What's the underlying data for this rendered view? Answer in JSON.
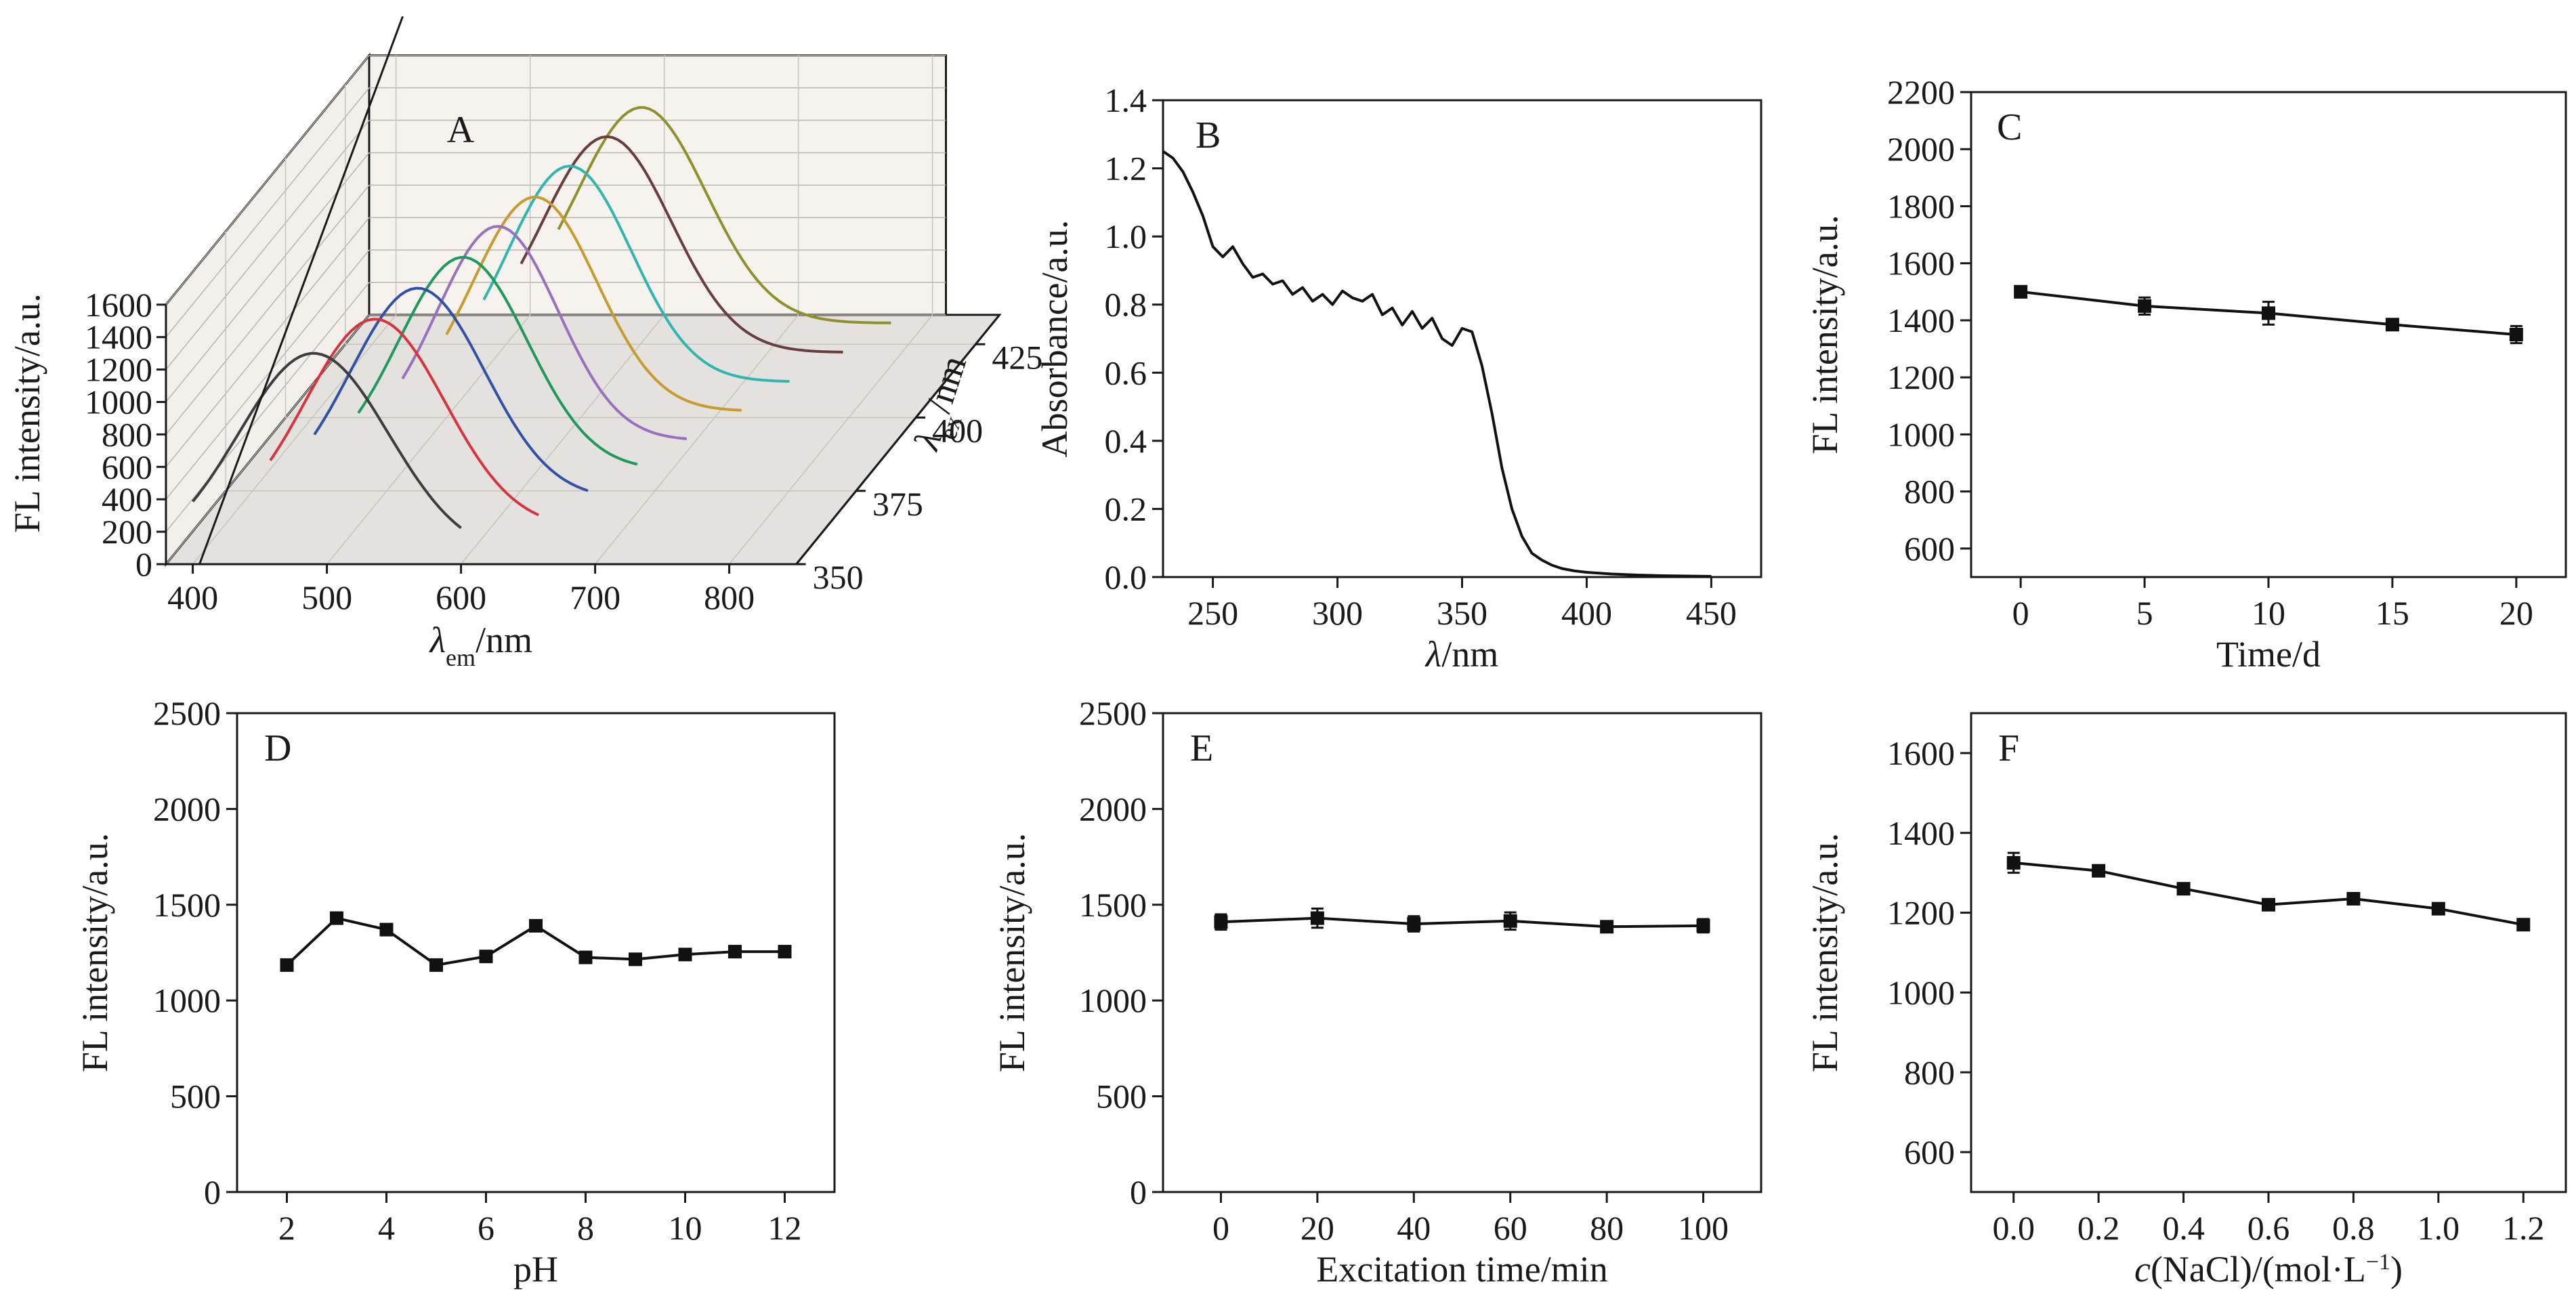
{
  "chart_data": [
    {
      "panel": "A",
      "type": "line",
      "projection": "3d-waterfall",
      "xlabel": "λem/nm",
      "xlabel_main": "λ",
      "xlabel_sub": "em",
      "xlabel_unit": "/nm",
      "ylabel": "FL intensity/a.u.",
      "zlabel": "λex/nm",
      "zlabel_main": "λ",
      "zlabel_sub": "ex",
      "zlabel_unit": "/nm",
      "xlim": [
        380,
        850
      ],
      "ylim": [
        0,
        1600
      ],
      "x_ticks": [
        "400",
        "500",
        "600",
        "700",
        "800"
      ],
      "y_ticks": [
        "0",
        "200",
        "400",
        "600",
        "800",
        "1000",
        "1200",
        "1400",
        "1600"
      ],
      "z_ticks": [
        "350",
        "375",
        "400",
        "425"
      ],
      "series": [
        {
          "ex": 350,
          "color": "#3d3d3d",
          "peak": 1260,
          "center": 490,
          "width": 56,
          "start": 400,
          "end": 600
        },
        {
          "ex": 360,
          "color": "#d9343b",
          "peak": 1290,
          "center": 518,
          "width": 52,
          "start": 440,
          "end": 640
        },
        {
          "ex": 370,
          "color": "#2f52a8",
          "peak": 1300,
          "center": 532,
          "width": 50,
          "start": 455,
          "end": 660
        },
        {
          "ex": 380,
          "color": "#1f9a5a",
          "peak": 1310,
          "center": 548,
          "width": 48,
          "start": 470,
          "end": 680
        },
        {
          "ex": 390,
          "color": "#9a6fc0",
          "peak": 1320,
          "center": 556,
          "width": 45,
          "start": 485,
          "end": 700
        },
        {
          "ex": 400,
          "color": "#c99a2e",
          "peak": 1320,
          "center": 566,
          "width": 46,
          "start": 500,
          "end": 720
        },
        {
          "ex": 410,
          "color": "#2fb5b2",
          "peak": 1330,
          "center": 574,
          "width": 46,
          "start": 510,
          "end": 740
        },
        {
          "ex": 420,
          "color": "#6a3d3d",
          "peak": 1330,
          "center": 584,
          "width": 48,
          "start": 520,
          "end": 760
        },
        {
          "ex": 430,
          "color": "#8f8f2c",
          "peak": 1330,
          "center": 592,
          "width": 48,
          "start": 530,
          "end": 780
        }
      ]
    },
    {
      "panel": "B",
      "type": "line",
      "xlabel": "λ/nm",
      "xlabel_main": "λ",
      "xlabel_unit": "/nm",
      "ylabel": "Absorbance/a.u.",
      "xlim": [
        230,
        470
      ],
      "ylim": [
        0,
        1.4
      ],
      "x_ticks": [
        250,
        300,
        350,
        400,
        450
      ],
      "y_ticks": [
        0.0,
        0.2,
        0.4,
        0.6,
        0.8,
        1.0,
        1.2,
        1.4
      ],
      "y_tick_labels": [
        "0.0",
        "0.2",
        "0.4",
        "0.6",
        "0.8",
        "1.0",
        "1.2",
        "1.4"
      ],
      "x": [
        230,
        234,
        238,
        242,
        246,
        250,
        254,
        258,
        262,
        266,
        270,
        274,
        278,
        282,
        286,
        290,
        294,
        298,
        302,
        306,
        310,
        314,
        318,
        322,
        326,
        330,
        334,
        338,
        342,
        346,
        350,
        354,
        358,
        362,
        366,
        370,
        374,
        378,
        382,
        386,
        390,
        395,
        400,
        410,
        420,
        430,
        440,
        450
      ],
      "values": [
        1.25,
        1.23,
        1.19,
        1.13,
        1.06,
        0.97,
        0.94,
        0.97,
        0.92,
        0.88,
        0.89,
        0.86,
        0.87,
        0.83,
        0.85,
        0.81,
        0.83,
        0.8,
        0.84,
        0.82,
        0.81,
        0.83,
        0.77,
        0.79,
        0.74,
        0.78,
        0.73,
        0.76,
        0.7,
        0.68,
        0.73,
        0.72,
        0.62,
        0.48,
        0.32,
        0.2,
        0.12,
        0.07,
        0.05,
        0.035,
        0.025,
        0.018,
        0.014,
        0.009,
        0.006,
        0.004,
        0.003,
        0.002
      ]
    },
    {
      "panel": "C",
      "type": "line",
      "xlabel": "Time/d",
      "ylabel": "FL intensity/a.u.",
      "xlim": [
        -2,
        22
      ],
      "ylim": [
        500,
        2200
      ],
      "x_ticks": [
        0,
        5,
        10,
        15,
        20
      ],
      "y_ticks": [
        600,
        800,
        1000,
        1200,
        1400,
        1600,
        1800,
        2000,
        2200
      ],
      "x": [
        0,
        5,
        10,
        15,
        20
      ],
      "values": [
        1500,
        1450,
        1425,
        1385,
        1350
      ],
      "errors": [
        20,
        30,
        40,
        15,
        30
      ]
    },
    {
      "panel": "D",
      "type": "line",
      "xlabel": "pH",
      "ylabel": "FL intensity/a.u.",
      "xlim": [
        1,
        13
      ],
      "ylim": [
        0,
        2500
      ],
      "x_ticks": [
        2,
        4,
        6,
        8,
        10,
        12
      ],
      "y_ticks": [
        0,
        500,
        1000,
        1500,
        2000,
        2500
      ],
      "x": [
        2,
        3,
        4,
        5,
        6,
        7,
        8,
        9,
        10,
        11,
        12
      ],
      "values": [
        1185,
        1430,
        1370,
        1185,
        1230,
        1390,
        1225,
        1215,
        1240,
        1255,
        1255
      ],
      "errors": [
        10,
        10,
        10,
        10,
        10,
        10,
        10,
        10,
        10,
        10,
        10
      ]
    },
    {
      "panel": "E",
      "type": "line",
      "xlabel": "Excitation time/min",
      "ylabel": "FL intensity/a.u.",
      "xlim": [
        -12,
        112
      ],
      "ylim": [
        0,
        2500
      ],
      "x_ticks": [
        0,
        20,
        40,
        60,
        80,
        100
      ],
      "y_ticks": [
        0,
        500,
        1000,
        1500,
        2000,
        2500
      ],
      "x": [
        0,
        20,
        40,
        60,
        80,
        100
      ],
      "values": [
        1410,
        1430,
        1400,
        1415,
        1385,
        1390
      ],
      "errors": [
        40,
        50,
        40,
        45,
        20,
        35
      ]
    },
    {
      "panel": "F",
      "type": "line",
      "xlabel": "c(NaCl)/(mol·L−1)",
      "xlabel_italic": "c",
      "xlabel_mid": "(NaCl)/(mol·L",
      "xlabel_sup": "−1",
      "xlabel_end": ")",
      "ylabel": "FL intensity/a.u.",
      "xlim": [
        -0.1,
        1.3
      ],
      "ylim": [
        500,
        1700
      ],
      "x_ticks": [
        0.0,
        0.2,
        0.4,
        0.6,
        0.8,
        1.0,
        1.2
      ],
      "x_tick_labels": [
        "0.0",
        "0.2",
        "0.4",
        "0.6",
        "0.8",
        "1.0",
        "1.2"
      ],
      "y_ticks": [
        600,
        800,
        1000,
        1200,
        1400,
        1600
      ],
      "x": [
        0.0,
        0.2,
        0.4,
        0.6,
        0.8,
        1.0,
        1.2
      ],
      "values": [
        1325,
        1305,
        1260,
        1220,
        1235,
        1210,
        1170
      ],
      "errors": [
        25,
        10,
        10,
        10,
        10,
        10,
        10
      ]
    }
  ]
}
